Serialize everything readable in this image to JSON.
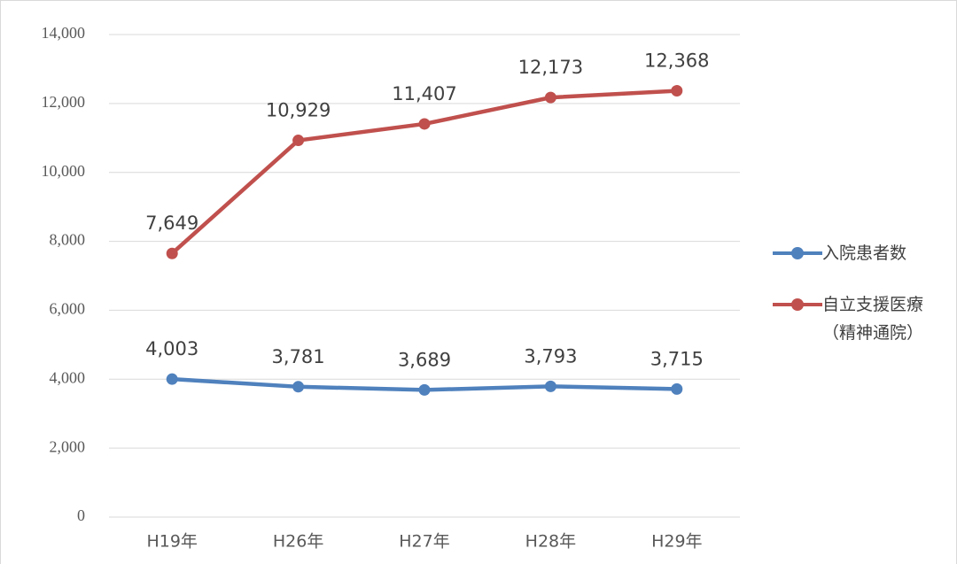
{
  "chart_data": {
    "type": "line",
    "categories": [
      "H19年",
      "H26年",
      "H27年",
      "H28年",
      "H29年"
    ],
    "series": [
      {
        "name": "入院患者数",
        "color": "#4f81bd",
        "values": [
          4003,
          3781,
          3689,
          3793,
          3715
        ],
        "value_labels": [
          "4,003",
          "3,781",
          "3,689",
          "3,793",
          "3,715"
        ]
      },
      {
        "name": "自立支援医療（精神通院）",
        "color": "#c0504d",
        "values": [
          7649,
          10929,
          11407,
          12173,
          12368
        ],
        "value_labels": [
          "7,649",
          "10,929",
          "11,407",
          "12,173",
          "12,368"
        ]
      }
    ],
    "ylim": [
      0,
      14000
    ],
    "yticks": [
      0,
      {
        "value": 2000,
        "label": "2,000"
      },
      {
        "value": 4000,
        "label": "4,000"
      },
      {
        "value": 6000,
        "label": "6,000"
      },
      {
        "value": 8000,
        "label": "8,000"
      },
      {
        "value": 10000,
        "label": "10,000"
      },
      {
        "value": 12000,
        "label": "12,000"
      },
      {
        "value": 14000,
        "label": "14,000"
      }
    ],
    "grid": true,
    "legend": "right"
  }
}
